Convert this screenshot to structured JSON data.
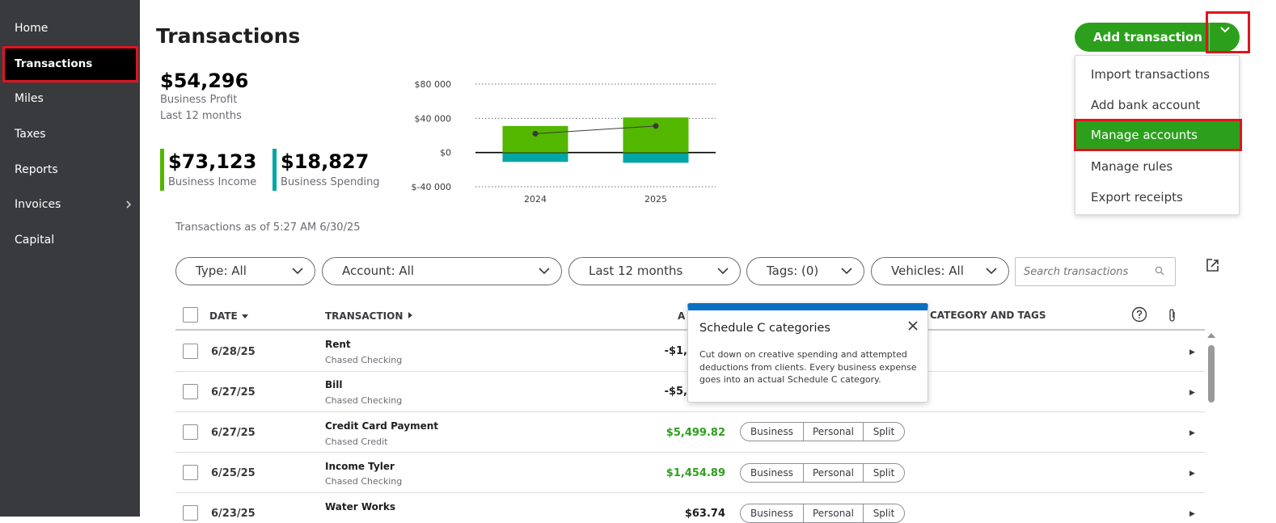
{
  "sidebar": {
    "items": [
      {
        "label": "Home"
      },
      {
        "label": "Transactions",
        "active": true
      },
      {
        "label": "Miles"
      },
      {
        "label": "Taxes"
      },
      {
        "label": "Reports"
      },
      {
        "label": "Invoices",
        "has_submenu": true,
        "chevron_icon": "chevron-right-icon"
      },
      {
        "label": "Capital"
      }
    ]
  },
  "header": {
    "title": "Transactions",
    "add_button": {
      "label": "Add transaction",
      "toggle_icon": "chevron-down-icon"
    }
  },
  "add_menu": {
    "items": [
      {
        "label": "Import transactions"
      },
      {
        "label": "Add bank account"
      },
      {
        "label": "Manage accounts",
        "highlighted": true
      },
      {
        "label": "Manage rules"
      },
      {
        "label": "Export receipts"
      }
    ]
  },
  "summary": {
    "profit_value": "$54,296",
    "profit_label": "Business Profit",
    "profit_period": "Last 12 months",
    "income_value": "$73,123",
    "income_label": "Business Income",
    "spending_value": "$18,827",
    "spending_label": "Business Spending"
  },
  "chart_data": {
    "type": "bar",
    "categories": [
      "2024",
      "2025"
    ],
    "series": [
      {
        "name": "Business Income",
        "color": "#53b700",
        "values": [
          31000,
          41000
        ]
      },
      {
        "name": "Business Spending",
        "color": "#00a6a4",
        "values": [
          -11000,
          -12000
        ]
      },
      {
        "name": "Business Profit",
        "color": "#393a3d",
        "values": [
          22000,
          31000
        ],
        "kind": "line"
      }
    ],
    "yticks": [
      "$80 000",
      "$40 000",
      "$0",
      "$-40 000"
    ],
    "ylim": [
      -40000,
      80000
    ],
    "grid": "dotted"
  },
  "as_of": "Transactions as of 5:27 AM 6/30/25",
  "filters": [
    {
      "label": "Type: All"
    },
    {
      "label": "Account: All"
    },
    {
      "label": "Last 12 months"
    },
    {
      "label": "Tags: (0)"
    },
    {
      "label": "Vehicles: All"
    }
  ],
  "search": {
    "placeholder": "Search transactions",
    "icon": "search-icon"
  },
  "table": {
    "headers": {
      "date": "DATE",
      "date_sort_icon": "sort-down-icon",
      "transaction": "TRANSACTION",
      "transaction_sort_icon": "sort-right-icon",
      "amount_partial": "A",
      "category": "CATEGORY AND TAGS",
      "help_icon": "help-icon",
      "attachment_icon": "paperclip-icon"
    },
    "rows": [
      {
        "date": "6/28/25",
        "name": "Rent",
        "account": "Chased Checking",
        "amount": "-$1,",
        "positive": false
      },
      {
        "date": "6/27/25",
        "name": "Bill",
        "account": "Chased Checking",
        "amount": "-$5,",
        "positive": false
      },
      {
        "date": "6/27/25",
        "name": "Credit Card Payment",
        "account": "Chased Credit",
        "amount": "$5,499.82",
        "positive": true
      },
      {
        "date": "6/25/25",
        "name": "Income Tyler",
        "account": "Chased Checking",
        "amount": "$1,454.89",
        "positive": true
      },
      {
        "date": "6/23/25",
        "name": "Water Works",
        "account": "",
        "amount": "$63.74",
        "positive": true
      }
    ],
    "segment_labels": {
      "business": "Business",
      "personal": "Personal",
      "split": "Split"
    }
  },
  "popover": {
    "title": "Schedule C categories",
    "body": "Cut down on creative spending and attempted deductions from clients. Every business expense goes into an actual Schedule C category.",
    "close_icon": "close-icon",
    "accent": "#0a6fc2"
  },
  "colors": {
    "brand_green": "#2ca01c",
    "sidebar_bg": "#393a3d",
    "highlight_red": "#e0141e"
  }
}
